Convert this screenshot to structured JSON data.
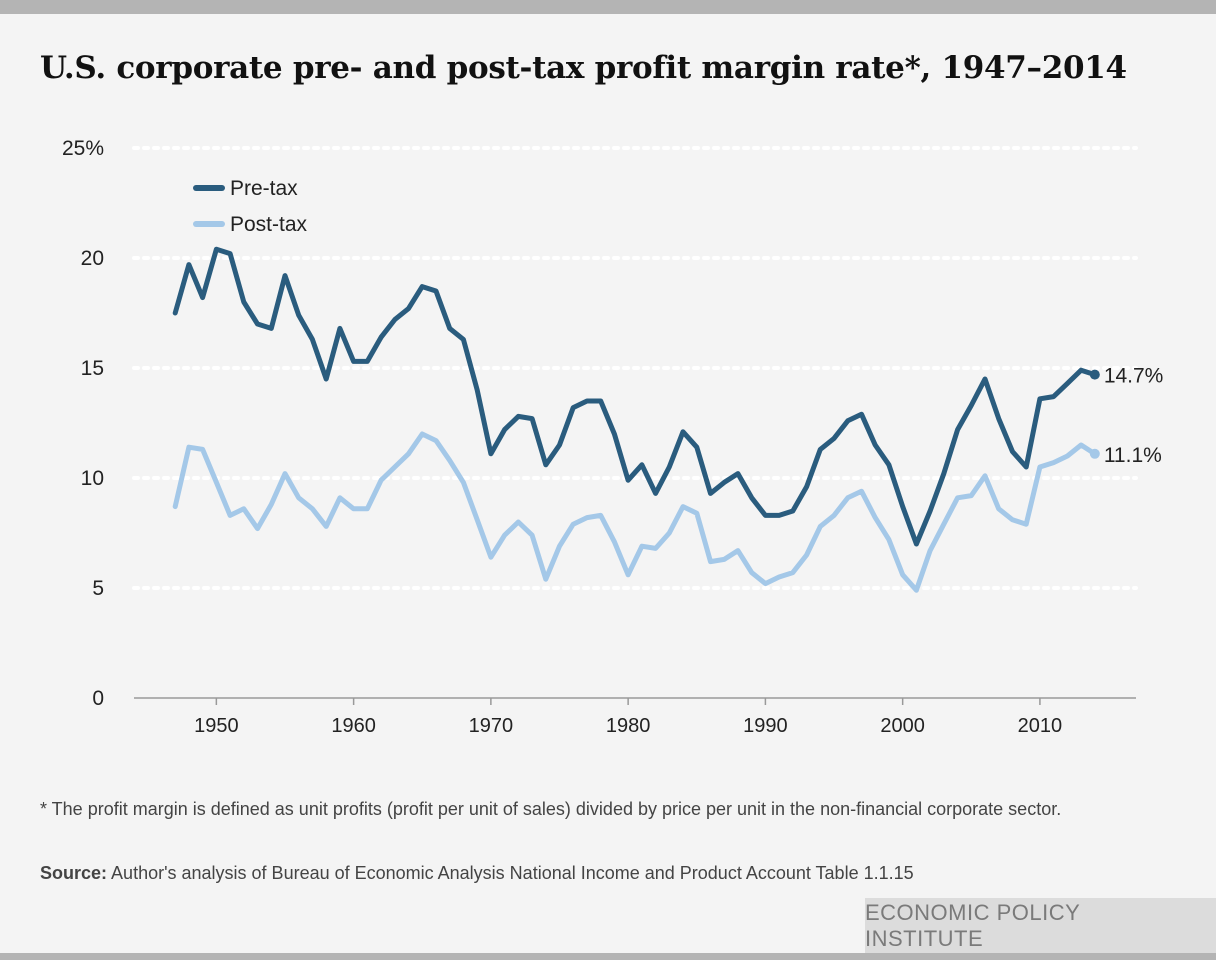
{
  "title": "U.S. corporate pre- and post-tax profit margin rate*, 1947–2014",
  "footnote": "* The profit margin is defined as unit profits (profit per unit of sales) divided by price per unit in the non-financial corporate sector.",
  "source": {
    "label": "Source:",
    "text": "Author's analysis of Bureau of Economic Analysis National Income and Product Account Table 1.1.15"
  },
  "brand": "ECONOMIC POLICY INSTITUTE",
  "colors": {
    "pretax": "#2a5c7e",
    "posttax": "#a4c8e8",
    "grid": "#ffffff",
    "axis": "#999999"
  },
  "chart_data": {
    "type": "line",
    "title": "U.S. corporate pre- and post-tax profit margin rate*, 1947–2014",
    "xlabel": "",
    "ylabel": "",
    "xlim": [
      1944,
      2017
    ],
    "ylim": [
      0,
      25
    ],
    "yticks": [
      0,
      5,
      10,
      15,
      20,
      25
    ],
    "ytick_labels": [
      "0",
      "5",
      "10",
      "15",
      "20",
      "25%"
    ],
    "xticks": [
      1950,
      1960,
      1970,
      1980,
      1990,
      2000,
      2010
    ],
    "xtick_labels": [
      "1950",
      "1960",
      "1970",
      "1980",
      "1990",
      "2000",
      "2010"
    ],
    "grid": true,
    "legend": "top-left",
    "x": [
      1947,
      1948,
      1949,
      1950,
      1951,
      1952,
      1953,
      1954,
      1955,
      1956,
      1957,
      1958,
      1959,
      1960,
      1961,
      1962,
      1963,
      1964,
      1965,
      1966,
      1967,
      1968,
      1969,
      1970,
      1971,
      1972,
      1973,
      1974,
      1975,
      1976,
      1977,
      1978,
      1979,
      1980,
      1981,
      1982,
      1983,
      1984,
      1985,
      1986,
      1987,
      1988,
      1989,
      1990,
      1991,
      1992,
      1993,
      1994,
      1995,
      1996,
      1997,
      1998,
      1999,
      2000,
      2001,
      2002,
      2003,
      2004,
      2005,
      2006,
      2007,
      2008,
      2009,
      2010,
      2011,
      2012,
      2013,
      2014
    ],
    "series": [
      {
        "name": "Pre-tax",
        "end_label": "14.7%",
        "values": [
          17.5,
          19.7,
          18.2,
          20.4,
          20.2,
          18.0,
          17.0,
          16.8,
          19.2,
          17.4,
          16.3,
          14.5,
          16.8,
          15.3,
          15.3,
          16.4,
          17.2,
          17.7,
          18.7,
          18.5,
          16.8,
          16.3,
          14.0,
          11.1,
          12.2,
          12.8,
          12.7,
          10.6,
          11.5,
          13.2,
          13.5,
          13.5,
          12.0,
          9.9,
          10.6,
          9.3,
          10.5,
          12.1,
          11.4,
          9.3,
          9.8,
          10.2,
          9.1,
          8.3,
          8.3,
          8.5,
          9.6,
          11.3,
          11.8,
          12.6,
          12.9,
          11.5,
          10.6,
          8.7,
          7.0,
          8.5,
          10.2,
          12.2,
          13.3,
          14.5,
          12.7,
          11.2,
          10.5,
          13.6,
          13.7,
          14.3,
          14.9,
          14.7
        ]
      },
      {
        "name": "Post-tax",
        "end_label": "11.1%",
        "values": [
          8.7,
          11.4,
          11.3,
          9.8,
          8.3,
          8.6,
          7.7,
          8.8,
          10.2,
          9.1,
          8.6,
          7.8,
          9.1,
          8.6,
          8.6,
          9.9,
          10.5,
          11.1,
          12.0,
          11.7,
          10.8,
          9.8,
          8.1,
          6.4,
          7.4,
          8.0,
          7.4,
          5.4,
          6.9,
          7.9,
          8.2,
          8.3,
          7.1,
          5.6,
          6.9,
          6.8,
          7.5,
          8.7,
          8.4,
          6.2,
          6.3,
          6.7,
          5.7,
          5.2,
          5.5,
          5.7,
          6.5,
          7.8,
          8.3,
          9.1,
          9.4,
          8.2,
          7.2,
          5.6,
          4.9,
          6.7,
          7.9,
          9.1,
          9.2,
          10.1,
          8.6,
          8.1,
          7.9,
          10.5,
          10.7,
          11.0,
          11.5,
          11.1
        ]
      }
    ]
  }
}
